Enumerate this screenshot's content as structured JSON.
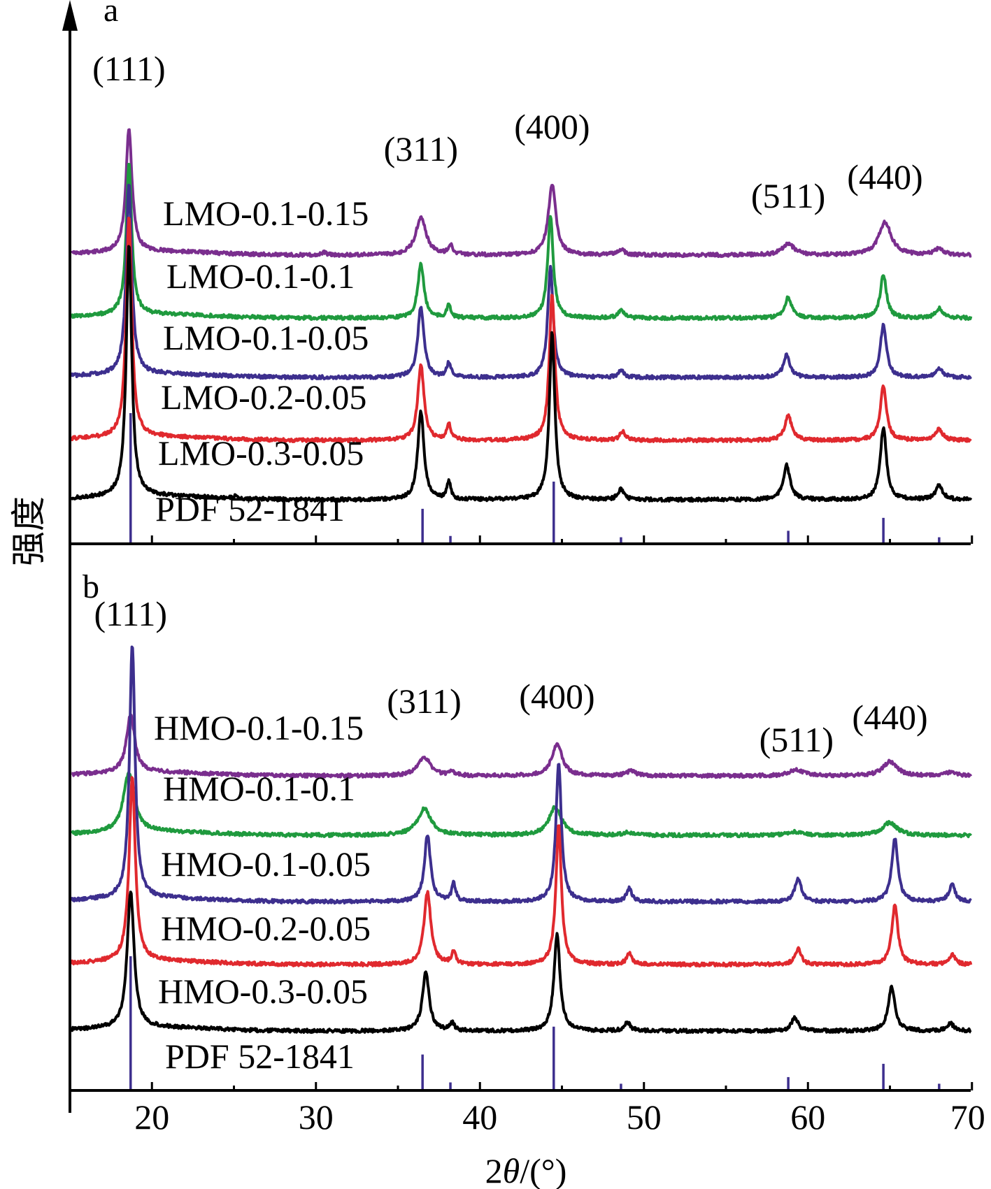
{
  "chart_data": [
    {
      "panel_label": "a",
      "type": "line",
      "xlim": [
        15,
        70
      ],
      "series": [
        {
          "name": "LMO-0.1-0.15",
          "color": "#7a2e8e",
          "baseline": 0.0,
          "amp": 1.0,
          "peaks": [
            [
              18.6,
              1.0,
              0.45
            ],
            [
              30.5,
              0.02,
              0.4
            ],
            [
              36.4,
              0.31,
              0.75
            ],
            [
              38.2,
              0.08,
              0.3
            ],
            [
              44.4,
              0.58,
              0.55
            ],
            [
              48.6,
              0.04,
              0.6
            ],
            [
              58.8,
              0.09,
              0.9
            ],
            [
              64.7,
              0.27,
              0.9
            ],
            [
              68.0,
              0.05,
              0.7
            ]
          ]
        },
        {
          "name": "LMO-0.1-0.1",
          "color": "#1f9a3e",
          "baseline": 0.0,
          "amp": 1.0,
          "peaks": [
            [
              18.6,
              1.23,
              0.4
            ],
            [
              36.4,
              0.44,
              0.45
            ],
            [
              38.1,
              0.1,
              0.3
            ],
            [
              44.3,
              0.84,
              0.4
            ],
            [
              48.6,
              0.07,
              0.4
            ],
            [
              58.8,
              0.17,
              0.5
            ],
            [
              64.6,
              0.36,
              0.45
            ],
            [
              68.0,
              0.08,
              0.5
            ]
          ]
        },
        {
          "name": "LMO-0.1-0.05",
          "color": "#3d2f8e",
          "baseline": 0.0,
          "amp": 1.0,
          "peaks": [
            [
              18.6,
              1.57,
              0.4
            ],
            [
              36.4,
              0.58,
              0.45
            ],
            [
              38.1,
              0.12,
              0.3
            ],
            [
              44.3,
              0.9,
              0.4
            ],
            [
              48.6,
              0.06,
              0.4
            ],
            [
              58.7,
              0.18,
              0.5
            ],
            [
              64.6,
              0.43,
              0.45
            ],
            [
              68.0,
              0.08,
              0.5
            ]
          ]
        },
        {
          "name": "LMO-0.2-0.05",
          "color": "#e0292e",
          "baseline": 0.0,
          "amp": 1.0,
          "peaks": [
            [
              18.6,
              1.81,
              0.4
            ],
            [
              36.4,
              0.62,
              0.45
            ],
            [
              38.1,
              0.13,
              0.3
            ],
            [
              44.4,
              1.2,
              0.4
            ],
            [
              48.7,
              0.07,
              0.4
            ],
            [
              58.8,
              0.2,
              0.5
            ],
            [
              64.6,
              0.45,
              0.45
            ],
            [
              68.0,
              0.09,
              0.5
            ]
          ]
        },
        {
          "name": "LMO-0.3-0.05",
          "color": "#000000",
          "baseline": 0.0,
          "amp": 1.0,
          "peaks": [
            [
              18.6,
              2.06,
              0.4
            ],
            [
              25.0,
              0.02,
              0.3
            ],
            [
              36.4,
              0.72,
              0.45
            ],
            [
              38.1,
              0.14,
              0.3
            ],
            [
              44.4,
              1.37,
              0.4
            ],
            [
              48.6,
              0.09,
              0.4
            ],
            [
              58.7,
              0.28,
              0.5
            ],
            [
              64.6,
              0.59,
              0.45
            ],
            [
              68.0,
              0.12,
              0.5
            ]
          ]
        }
      ],
      "reference": {
        "name": "PDF 52-1841",
        "color": "#3d2f8e",
        "lines": [
          [
            18.7,
            1.0
          ],
          [
            36.5,
            0.26
          ],
          [
            38.2,
            0.05
          ],
          [
            44.5,
            0.47
          ],
          [
            48.6,
            0.04
          ],
          [
            58.8,
            0.09
          ],
          [
            64.6,
            0.19
          ],
          [
            68.0,
            0.04
          ]
        ]
      },
      "annotations": [
        {
          "text": "(111)",
          "x": 18.6
        },
        {
          "text": "(311)",
          "x": 36.4
        },
        {
          "text": "(400)",
          "x": 44.4
        },
        {
          "text": "(511)",
          "x": 58.8
        },
        {
          "text": "(440)",
          "x": 64.7
        }
      ]
    },
    {
      "panel_label": "b",
      "type": "line",
      "xlim": [
        15,
        70
      ],
      "series": [
        {
          "name": "HMO-0.1-0.15",
          "color": "#7a2e8e",
          "baseline": 0.0,
          "amp": 1.0,
          "peaks": [
            [
              18.7,
              0.49,
              0.6
            ],
            [
              36.6,
              0.16,
              0.9
            ],
            [
              38.3,
              0.03,
              0.4
            ],
            [
              44.7,
              0.27,
              0.75
            ],
            [
              49.2,
              0.04,
              0.7
            ],
            [
              59.3,
              0.05,
              1.0
            ],
            [
              65.0,
              0.12,
              1.0
            ],
            [
              68.7,
              0.03,
              0.8
            ]
          ]
        },
        {
          "name": "HMO-0.1-0.1",
          "color": "#1f9a3e",
          "baseline": 0.0,
          "amp": 1.0,
          "peaks": [
            [
              18.6,
              0.5,
              0.8
            ],
            [
              36.6,
              0.22,
              1.0
            ],
            [
              44.6,
              0.24,
              0.9
            ],
            [
              49.0,
              0.02,
              0.8
            ],
            [
              59.2,
              0.03,
              1.0
            ],
            [
              65.0,
              0.11,
              1.0
            ]
          ]
        },
        {
          "name": "HMO-0.1-0.05",
          "color": "#3d2f8e",
          "baseline": 0.0,
          "amp": 1.0,
          "peaks": [
            [
              18.8,
              2.14,
              0.4
            ],
            [
              36.8,
              0.56,
              0.45
            ],
            [
              38.4,
              0.15,
              0.3
            ],
            [
              44.8,
              1.16,
              0.4
            ],
            [
              49.1,
              0.11,
              0.4
            ],
            [
              59.4,
              0.2,
              0.45
            ],
            [
              65.3,
              0.53,
              0.45
            ],
            [
              68.8,
              0.14,
              0.45
            ]
          ]
        },
        {
          "name": "HMO-0.2-0.05",
          "color": "#e0292e",
          "baseline": 0.0,
          "amp": 1.0,
          "peaks": [
            [
              18.8,
              1.55,
              0.45
            ],
            [
              36.8,
              0.61,
              0.5
            ],
            [
              38.4,
              0.11,
              0.3
            ],
            [
              44.8,
              1.17,
              0.4
            ],
            [
              49.1,
              0.09,
              0.4
            ],
            [
              59.4,
              0.13,
              0.45
            ],
            [
              65.3,
              0.5,
              0.45
            ],
            [
              68.8,
              0.08,
              0.45
            ]
          ]
        },
        {
          "name": "HMO-0.3-0.05",
          "color": "#000000",
          "baseline": 0.0,
          "amp": 1.0,
          "peaks": [
            [
              18.7,
              1.15,
              0.5
            ],
            [
              36.7,
              0.49,
              0.5
            ],
            [
              38.3,
              0.07,
              0.3
            ],
            [
              44.7,
              0.81,
              0.45
            ],
            [
              49.0,
              0.07,
              0.45
            ],
            [
              59.2,
              0.11,
              0.5
            ],
            [
              65.1,
              0.37,
              0.5
            ],
            [
              68.7,
              0.06,
              0.5
            ]
          ]
        }
      ],
      "reference": {
        "name": "PDF 52-1841",
        "color": "#3d2f8e",
        "lines": [
          [
            18.7,
            1.0
          ],
          [
            36.5,
            0.26
          ],
          [
            38.2,
            0.05
          ],
          [
            44.5,
            0.47
          ],
          [
            48.6,
            0.04
          ],
          [
            58.8,
            0.09
          ],
          [
            64.6,
            0.19
          ],
          [
            68.0,
            0.04
          ]
        ]
      },
      "annotations": [
        {
          "text": "(111)",
          "x": 18.7
        },
        {
          "text": "(311)",
          "x": 36.6
        },
        {
          "text": "(400)",
          "x": 44.7
        },
        {
          "text": "(511)",
          "x": 59.3
        },
        {
          "text": "(440)",
          "x": 65.0
        }
      ]
    }
  ],
  "axes": {
    "xlabel_prefix": "2",
    "xlabel_italic": "θ",
    "xlabel_suffix": "/(°)",
    "ylabel": "强度",
    "x_ticks": [
      20,
      30,
      40,
      50,
      60,
      70
    ]
  }
}
